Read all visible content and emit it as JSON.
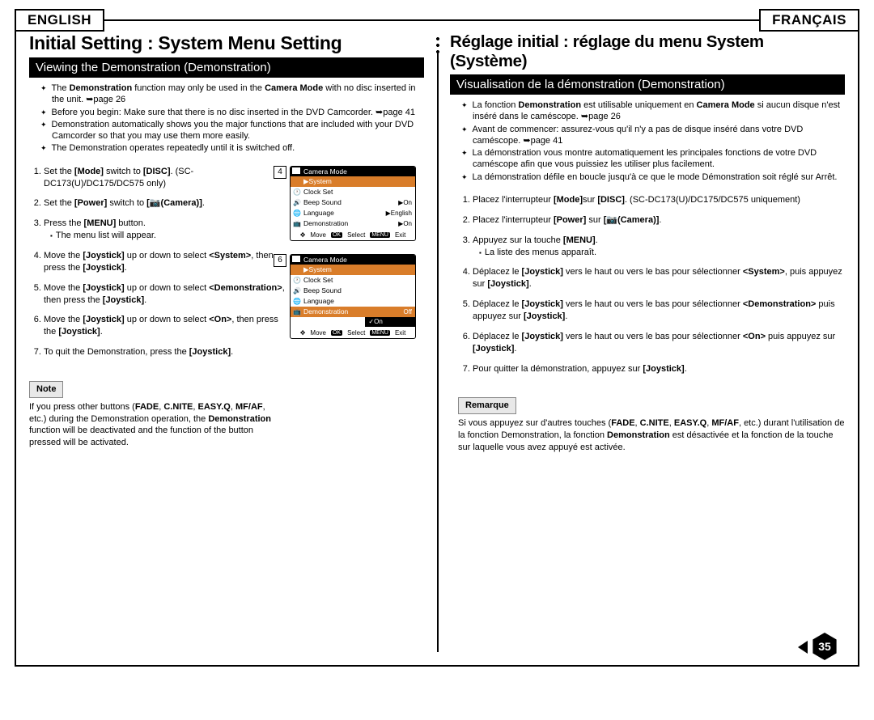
{
  "lang": {
    "en": "ENGLISH",
    "fr": "FRANÇAIS"
  },
  "page_number": "35",
  "en": {
    "title": "Initial Setting : System Menu Setting",
    "section": "Viewing the Demonstration (Demonstration)",
    "bullets": [
      "The <b>Demonstration</b> function may only be used in the <b>Camera Mode</b> with no disc inserted in the unit. ➥page 26",
      "Before you begin: Make sure that there is no disc inserted in the DVD Camcorder. ➥page 41",
      "Demonstration automatically shows you the major functions that are included with your DVD Camcorder so that you may use them more easily.",
      "The Demonstration operates repeatedly until it is switched off."
    ],
    "steps": [
      "Set the <b>[Mode]</b> switch to <b>[DISC]</b>. (SC-DC173(U)/DC175/DC575 only)",
      "Set the <b>[Power]</b> switch to <b>[📷(Camera)]</b>.",
      "Press the <b>[MENU]</b> button.|The menu list will appear.",
      "Move the <b>[Joystick]</b> up or down to select <b>&lt;System&gt;</b>, then press the <b>[Joystick]</b>.",
      "Move the <b>[Joystick]</b> up or down to select <b>&lt;Demonstration&gt;</b>, then press the <b>[Joystick]</b>.",
      "Move the <b>[Joystick]</b> up or down to select <b>&lt;On&gt;</b>, then press the <b>[Joystick]</b>.",
      "To quit the Demonstration, press the <b>[Joystick]</b>."
    ],
    "note_label": "Note",
    "note_text": "If you press other buttons (<b>FADE</b>, <b>C.NITE</b>, <b>EASY.Q</b>, <b>MF/AF</b>, etc.) during the Demonstration operation, the <b>Demonstration</b> function will be deactivated and the function of the button pressed will be activated."
  },
  "fr": {
    "title": "Réglage initial : réglage du menu System (Système)",
    "section": "Visualisation de la démonstration (Demonstration)",
    "bullets": [
      "La fonction <b>Demonstration</b> est utilisable uniquement en <b>Camera Mode</b> si aucun disque n'est inséré dans le caméscope. ➥page 26",
      "Avant de commencer: assurez-vous qu'il n'y a pas de disque inséré dans votre DVD caméscope. ➥page 41",
      "La démonstration vous montre automatiquement les principales fonctions de votre DVD caméscope afin que vous puissiez les utiliser plus facilement.",
      "La démonstration défile en boucle jusqu'à ce que le mode Démonstration soit réglé sur Arrêt."
    ],
    "steps": [
      "Placez l'interrupteur <b>[Mode]</b>sur <b>[DISC]</b>. (SC-DC173(U)/DC175/DC575 uniquement)",
      "Placez l'interrupteur <b>[Power]</b> sur <b>[📷(Camera)]</b>.",
      "Appuyez sur la touche <b>[MENU]</b>.|La liste des menus apparaît.",
      "Déplacez le <b>[Joystick]</b> vers le haut ou vers le bas pour sélectionner <b>&lt;System&gt;</b>, puis appuyez sur <b>[Joystick]</b>.",
      "Déplacez le <b>[Joystick]</b> vers le haut ou vers le bas pour sélectionner <b>&lt;Demonstration&gt;</b> puis appuyez sur <b>[Joystick]</b>.",
      "Déplacez le <b>[Joystick]</b> vers le haut ou vers le bas pour sélectionner <b>&lt;On&gt;</b> puis appuyez sur <b>[Joystick]</b>.",
      "Pour quitter la démonstration, appuyez sur <b>[Joystick]</b>."
    ],
    "note_label": "Remarque",
    "note_text": "Si vous appuyez sur d'autres touches (<b>FADE</b>, <b>C.NITE</b>, <b>EASY.Q</b>, <b>MF/AF</b>, etc.) durant l'utilisation de la fonction Demonstration, la fonction <b>Demonstration</b> est désactivée et la fonction de la touche sur laquelle vous avez appuyé est activée."
  },
  "screenshots": {
    "s4": {
      "num": "4",
      "title": "Camera Mode",
      "system": "▶System",
      "rows": [
        {
          "ic": "🕐",
          "lbl": "Clock Set",
          "val": ""
        },
        {
          "ic": "🔊",
          "lbl": "Beep Sound",
          "val": "▶On"
        },
        {
          "ic": "🌐",
          "lbl": "Language",
          "val": "▶English"
        },
        {
          "ic": "📺",
          "lbl": "Demonstration",
          "val": "▶On"
        }
      ],
      "foot": {
        "move": "Move",
        "select": "Select",
        "exit": "Exit",
        "ok": "OK",
        "menu": "MENU"
      }
    },
    "s6": {
      "num": "6",
      "title": "Camera Mode",
      "system": "▶System",
      "rows": [
        {
          "ic": "🕐",
          "lbl": "Clock Set",
          "val": ""
        },
        {
          "ic": "🔊",
          "lbl": "Beep Sound",
          "val": ""
        },
        {
          "ic": "🌐",
          "lbl": "Language",
          "val": ""
        },
        {
          "ic": "📺",
          "lbl": "Demonstration",
          "val": "Off",
          "sel": true
        }
      ],
      "sub_opt": "✓On",
      "foot": {
        "move": "Move",
        "select": "Select",
        "exit": "Exit",
        "ok": "OK",
        "menu": "MENU"
      }
    }
  }
}
